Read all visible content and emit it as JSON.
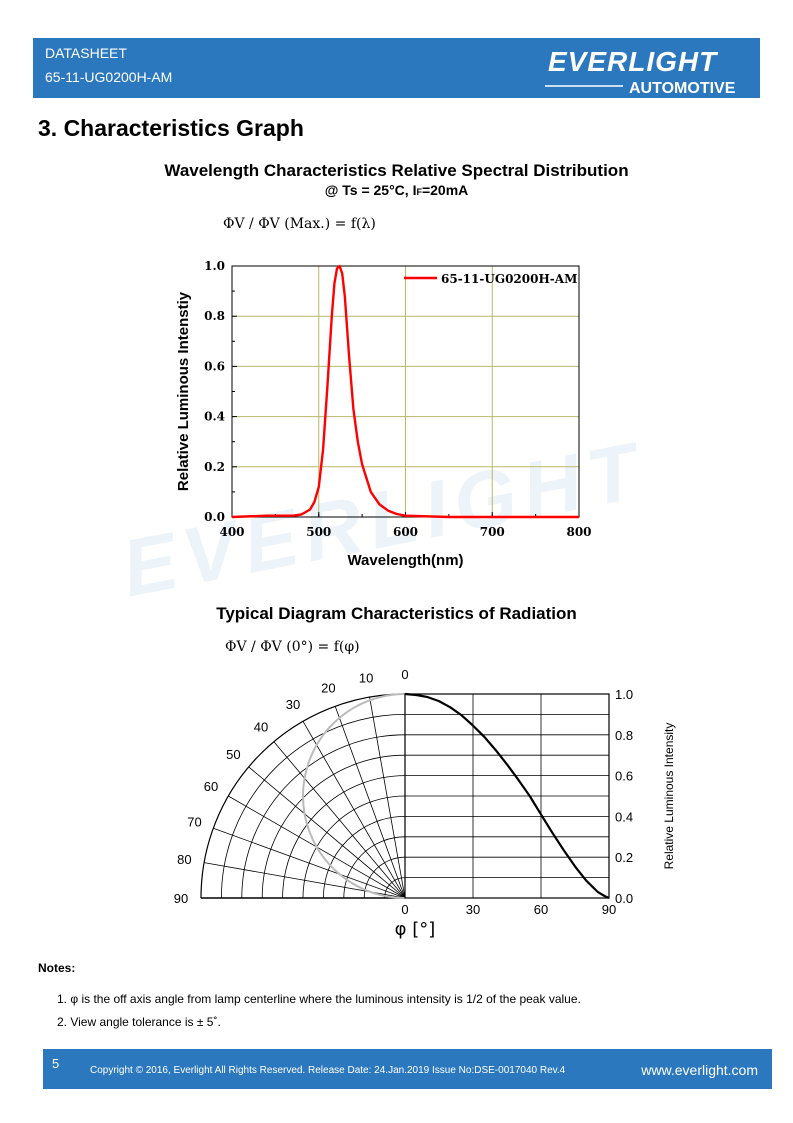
{
  "header": {
    "doc_label": "DATASHEET",
    "doc_code": "65-11-UG0200H-AM",
    "logo_brand": "EVERLIGHT",
    "logo_sub": "AUTOMOTIVE"
  },
  "section_title": "3. Characteristics Graph",
  "spectral": {
    "title": "Wavelength Characteristics Relative Spectral Distribution",
    "subtitle": "@ Ts = 25°C, I",
    "subtitle_sub": "F",
    "subtitle_end": "=20mA",
    "formula": "ΦV / ΦV (Max.) = f(λ)"
  },
  "radiation": {
    "title": "Typical Diagram Characteristics of Radiation",
    "formula": "ΦV / ΦV (0°) = f(φ)",
    "xlabel": "φ [°]"
  },
  "chart_data": [
    {
      "type": "line",
      "xlabel": "Wavelength(nm)",
      "ylabel": "Relative Luminous Intenstiy",
      "xlim": [
        400,
        800
      ],
      "ylim": [
        0.0,
        1.0
      ],
      "xticks": [
        "400",
        "500",
        "600",
        "700",
        "800"
      ],
      "yticks": [
        "0.0",
        "0.2",
        "0.4",
        "0.6",
        "0.8",
        "1.0"
      ],
      "grid": true,
      "legend": "top-right",
      "series": [
        {
          "name": "65-11-UG0200H-AM",
          "color": "#ff0000",
          "x": [
            400,
            440,
            470,
            480,
            490,
            495,
            500,
            505,
            510,
            515,
            518,
            521,
            524,
            527,
            530,
            535,
            540,
            545,
            550,
            560,
            570,
            580,
            590,
            600,
            650,
            700,
            800
          ],
          "y": [
            0.0,
            0.005,
            0.005,
            0.01,
            0.03,
            0.06,
            0.12,
            0.27,
            0.52,
            0.8,
            0.93,
            0.99,
            1.0,
            0.97,
            0.88,
            0.64,
            0.43,
            0.3,
            0.21,
            0.1,
            0.05,
            0.025,
            0.012,
            0.005,
            0.0,
            0.0,
            0.0
          ]
        }
      ]
    },
    {
      "type": "line",
      "xlabel": "φ [°]",
      "ylabel": "Relative Luminous Intensity",
      "xlim": [
        0,
        90
      ],
      "ylim": [
        0.0,
        1.0
      ],
      "xticks": [
        "0",
        "30",
        "60",
        "90"
      ],
      "yticks": [
        "0.0",
        "0.2",
        "0.4",
        "0.6",
        "0.8",
        "1.0"
      ],
      "polar_angle_labels": [
        "0",
        "10",
        "20",
        "30",
        "40",
        "50",
        "60",
        "70",
        "80",
        "90"
      ],
      "grid": true,
      "series": [
        {
          "x": [
            0,
            5,
            10,
            15,
            20,
            25,
            30,
            35,
            40,
            45,
            50,
            55,
            60,
            65,
            70,
            75,
            80,
            85,
            88,
            90
          ],
          "y": [
            1.0,
            0.995,
            0.985,
            0.965,
            0.935,
            0.895,
            0.845,
            0.79,
            0.725,
            0.655,
            0.58,
            0.5,
            0.41,
            0.32,
            0.235,
            0.155,
            0.085,
            0.03,
            0.01,
            0.0
          ]
        }
      ]
    }
  ],
  "notes": {
    "title": "Notes:",
    "items": [
      "1. φ is the off axis angle from lamp centerline where the luminous intensity is 1/2 of the peak value.",
      "2. View angle tolerance is ± 5˚."
    ]
  },
  "footer": {
    "page": "5",
    "copyright": "Copyright © 2016, Everlight All Rights Reserved. Release Date: 24.Jan.2019 Issue No:DSE-0017040 Rev.4",
    "website": "www.everlight.com"
  }
}
